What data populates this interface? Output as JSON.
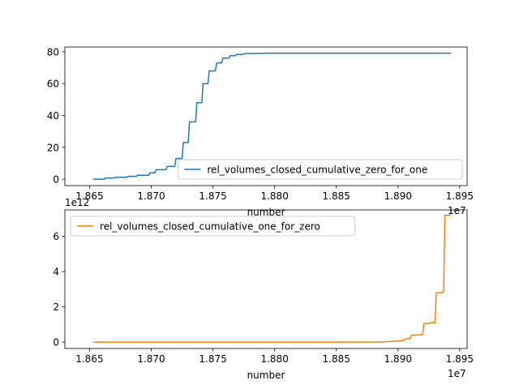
{
  "chart_data": [
    {
      "type": "line",
      "xlabel": "number",
      "ylabel": "",
      "x_offset_text": "1e7",
      "y_offset_text": "1e12",
      "xlim": [
        18.63,
        18.956
      ],
      "ylim": [
        -4.0,
        83.0
      ],
      "xticks": [
        18.65,
        18.7,
        18.75,
        18.8,
        18.85,
        18.9,
        18.95
      ],
      "xtick_labels": [
        "1.865",
        "1.870",
        "1.875",
        "1.880",
        "1.885",
        "1.890",
        "1.895"
      ],
      "yticks": [
        0,
        20,
        40,
        60,
        80
      ],
      "ytick_labels": [
        "0",
        "20",
        "40",
        "60",
        "80"
      ],
      "legend_position": "lower-right",
      "grid": false,
      "series": [
        {
          "name": "rel_volumes_closed_cumulative_zero_for_one",
          "color": "#1f77b4",
          "x": [
            18.653,
            18.662,
            18.663,
            18.67,
            18.671,
            18.68,
            18.681,
            18.688,
            18.689,
            18.698,
            18.699,
            18.703,
            18.704,
            18.712,
            18.713,
            18.719,
            18.72,
            18.725,
            18.726,
            18.73,
            18.731,
            18.736,
            18.737,
            18.741,
            18.742,
            18.746,
            18.747,
            18.752,
            18.753,
            18.757,
            18.758,
            18.763,
            18.764,
            18.768,
            18.769,
            18.774,
            18.775,
            18.778,
            18.785,
            18.79,
            18.8,
            18.82,
            18.85,
            18.9,
            18.943
          ],
          "y": [
            0.0,
            0.0,
            0.8,
            0.8,
            1.2,
            1.2,
            1.8,
            1.8,
            2.5,
            2.5,
            4.0,
            4.0,
            6.0,
            6.0,
            8.0,
            8.0,
            13.0,
            13.0,
            23.0,
            23.0,
            36.0,
            36.0,
            48.0,
            48.0,
            60.0,
            60.0,
            68.0,
            68.0,
            73.0,
            73.0,
            76.0,
            76.0,
            77.5,
            77.5,
            78.3,
            78.3,
            78.7,
            78.9,
            79.0,
            79.05,
            79.1,
            79.1,
            79.1,
            79.1,
            79.1
          ]
        }
      ]
    },
    {
      "type": "line",
      "xlabel": "number",
      "ylabel": "",
      "x_offset_text": "1e7",
      "xlim": [
        18.63,
        18.956
      ],
      "ylim": [
        -0.36,
        7.5
      ],
      "xticks": [
        18.65,
        18.7,
        18.75,
        18.8,
        18.85,
        18.9,
        18.95
      ],
      "xtick_labels": [
        "1.865",
        "1.870",
        "1.875",
        "1.880",
        "1.885",
        "1.890",
        "1.895"
      ],
      "yticks": [
        0,
        2,
        4,
        6
      ],
      "ytick_labels": [
        "0",
        "2",
        "4",
        "6"
      ],
      "legend_position": "upper-left",
      "grid": false,
      "series": [
        {
          "name": "rel_volumes_closed_cumulative_one_for_zero",
          "color": "#ff7f0e",
          "x": [
            18.653,
            18.85,
            18.88,
            18.89,
            18.895,
            18.9,
            18.905,
            18.906,
            18.91,
            18.911,
            18.916,
            18.917,
            18.92,
            18.921,
            18.925,
            18.926,
            18.93,
            18.931,
            18.935,
            18.936,
            18.937,
            18.938,
            18.943
          ],
          "y": [
            0.0,
            0.0,
            0.01,
            0.02,
            0.04,
            0.06,
            0.1,
            0.2,
            0.2,
            0.4,
            0.4,
            0.42,
            0.42,
            1.05,
            1.05,
            1.1,
            1.1,
            2.8,
            2.8,
            2.82,
            2.85,
            7.2,
            7.2
          ]
        }
      ]
    }
  ]
}
